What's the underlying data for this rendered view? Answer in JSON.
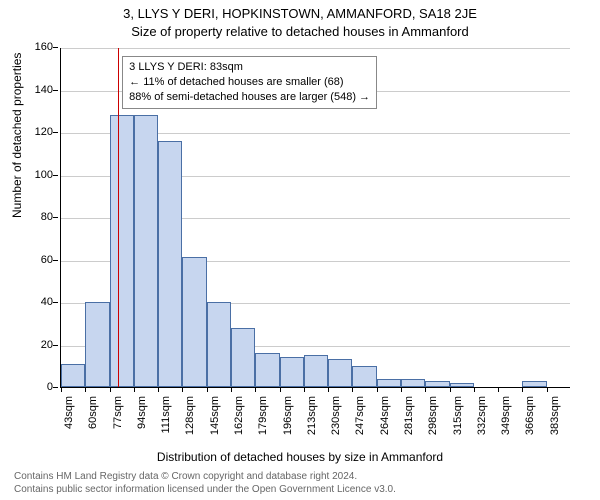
{
  "titles": {
    "line1": "3, LLYS Y DERI, HOPKINSTOWN, AMMANFORD, SA18 2JE",
    "line2": "Size of property relative to detached houses in Ammanford"
  },
  "axes": {
    "ylabel": "Number of detached properties",
    "xlabel": "Distribution of detached houses by size in Ammanford"
  },
  "chart": {
    "type": "histogram",
    "ylim": [
      0,
      160
    ],
    "ytick_step": 20,
    "bar_fill": "#c7d6ef",
    "bar_stroke": "#4a6fa5",
    "grid_color": "#cccccc",
    "background_color": "#ffffff",
    "marker_color": "#cc0000",
    "marker_x_sqm": 83,
    "x_start_sqm": 43,
    "x_step_sqm": 17,
    "x_unit": "sqm",
    "categories": [
      "43sqm",
      "60sqm",
      "77sqm",
      "94sqm",
      "111sqm",
      "128sqm",
      "145sqm",
      "162sqm",
      "179sqm",
      "196sqm",
      "213sqm",
      "230sqm",
      "247sqm",
      "264sqm",
      "281sqm",
      "298sqm",
      "315sqm",
      "332sqm",
      "349sqm",
      "366sqm",
      "383sqm"
    ],
    "values": [
      11,
      40,
      128,
      128,
      116,
      61,
      40,
      28,
      16,
      14,
      15,
      13,
      10,
      4,
      4,
      3,
      2,
      0,
      0,
      3,
      0
    ],
    "title_fontsize": 13,
    "label_fontsize": 12,
    "tick_fontsize": 11
  },
  "callout": {
    "line1": "3 LLYS Y DERI: 83sqm",
    "line2": "← 11% of detached houses are smaller (68)",
    "line3": "88% of semi-detached houses are larger (548) →"
  },
  "footer": {
    "line1": "Contains HM Land Registry data © Crown copyright and database right 2024.",
    "line2": "Contains public sector information licensed under the Open Government Licence v3.0."
  }
}
